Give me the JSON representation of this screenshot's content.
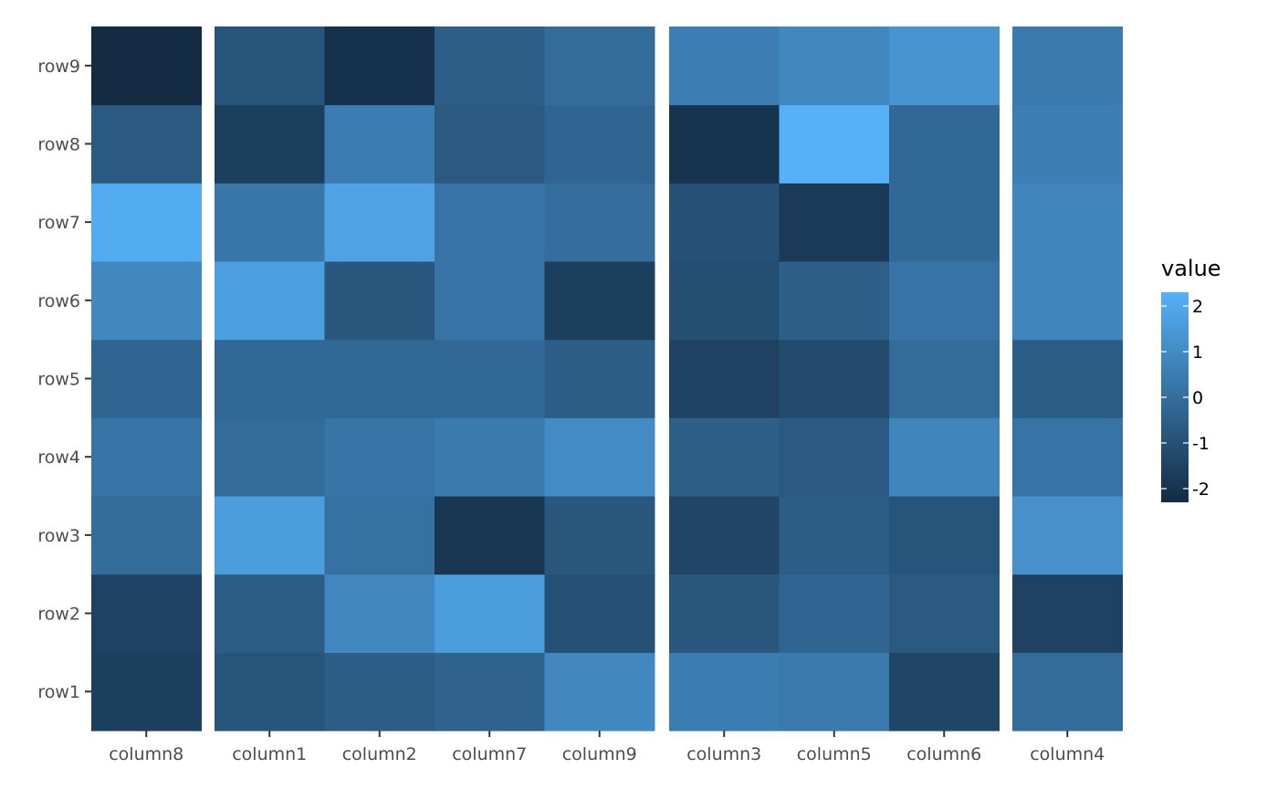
{
  "chart_data": {
    "type": "heatmap",
    "rows": [
      "row1",
      "row2",
      "row3",
      "row4",
      "row5",
      "row6",
      "row7",
      "row8",
      "row9"
    ],
    "column_groups": [
      [
        "column8"
      ],
      [
        "column1",
        "column2",
        "column7",
        "column9"
      ],
      [
        "column3",
        "column5",
        "column6"
      ],
      [
        "column4"
      ]
    ],
    "values": {
      "column8": [
        -1.6,
        -1.5,
        -0.1,
        0.2,
        -0.3,
        0.9,
        2.1,
        -0.7,
        -2.3
      ],
      "column1": [
        -0.9,
        -0.6,
        1.6,
        -0.1,
        -0.2,
        1.7,
        0.3,
        -1.6,
        -0.9
      ],
      "column2": [
        -0.6,
        0.9,
        0.1,
        0.2,
        -0.2,
        -0.8,
        1.8,
        0.5,
        -2.1
      ],
      "column7": [
        -0.4,
        1.6,
        -1.9,
        0.4,
        -0.2,
        0.2,
        0.2,
        -0.7,
        -0.5
      ],
      "column9": [
        0.9,
        -1.0,
        -0.8,
        1.0,
        -0.6,
        -1.6,
        0.0,
        -0.3,
        -0.1
      ],
      "column3": [
        0.5,
        -0.8,
        -1.4,
        -0.5,
        -1.5,
        -1.1,
        -1.0,
        -2.0,
        0.6
      ],
      "column5": [
        0.4,
        -0.3,
        -0.6,
        -0.7,
        -1.2,
        -0.5,
        -1.8,
        2.3,
        0.9
      ],
      "column6": [
        -1.4,
        -0.7,
        -0.9,
        0.8,
        -0.1,
        0.2,
        -0.2,
        -0.2,
        1.3
      ],
      "column4": [
        -0.1,
        -1.5,
        1.2,
        0.2,
        -0.6,
        0.8,
        0.8,
        0.6,
        0.4
      ]
    },
    "legend": {
      "title": "value",
      "ticks": [
        2,
        1,
        0,
        -1,
        -2
      ],
      "tick_labels": [
        "2",
        "1",
        "0",
        "-1",
        "-2"
      ],
      "range": [
        -2.3,
        2.3
      ],
      "low_color": "#132B43",
      "high_color": "#56B1F7"
    }
  }
}
